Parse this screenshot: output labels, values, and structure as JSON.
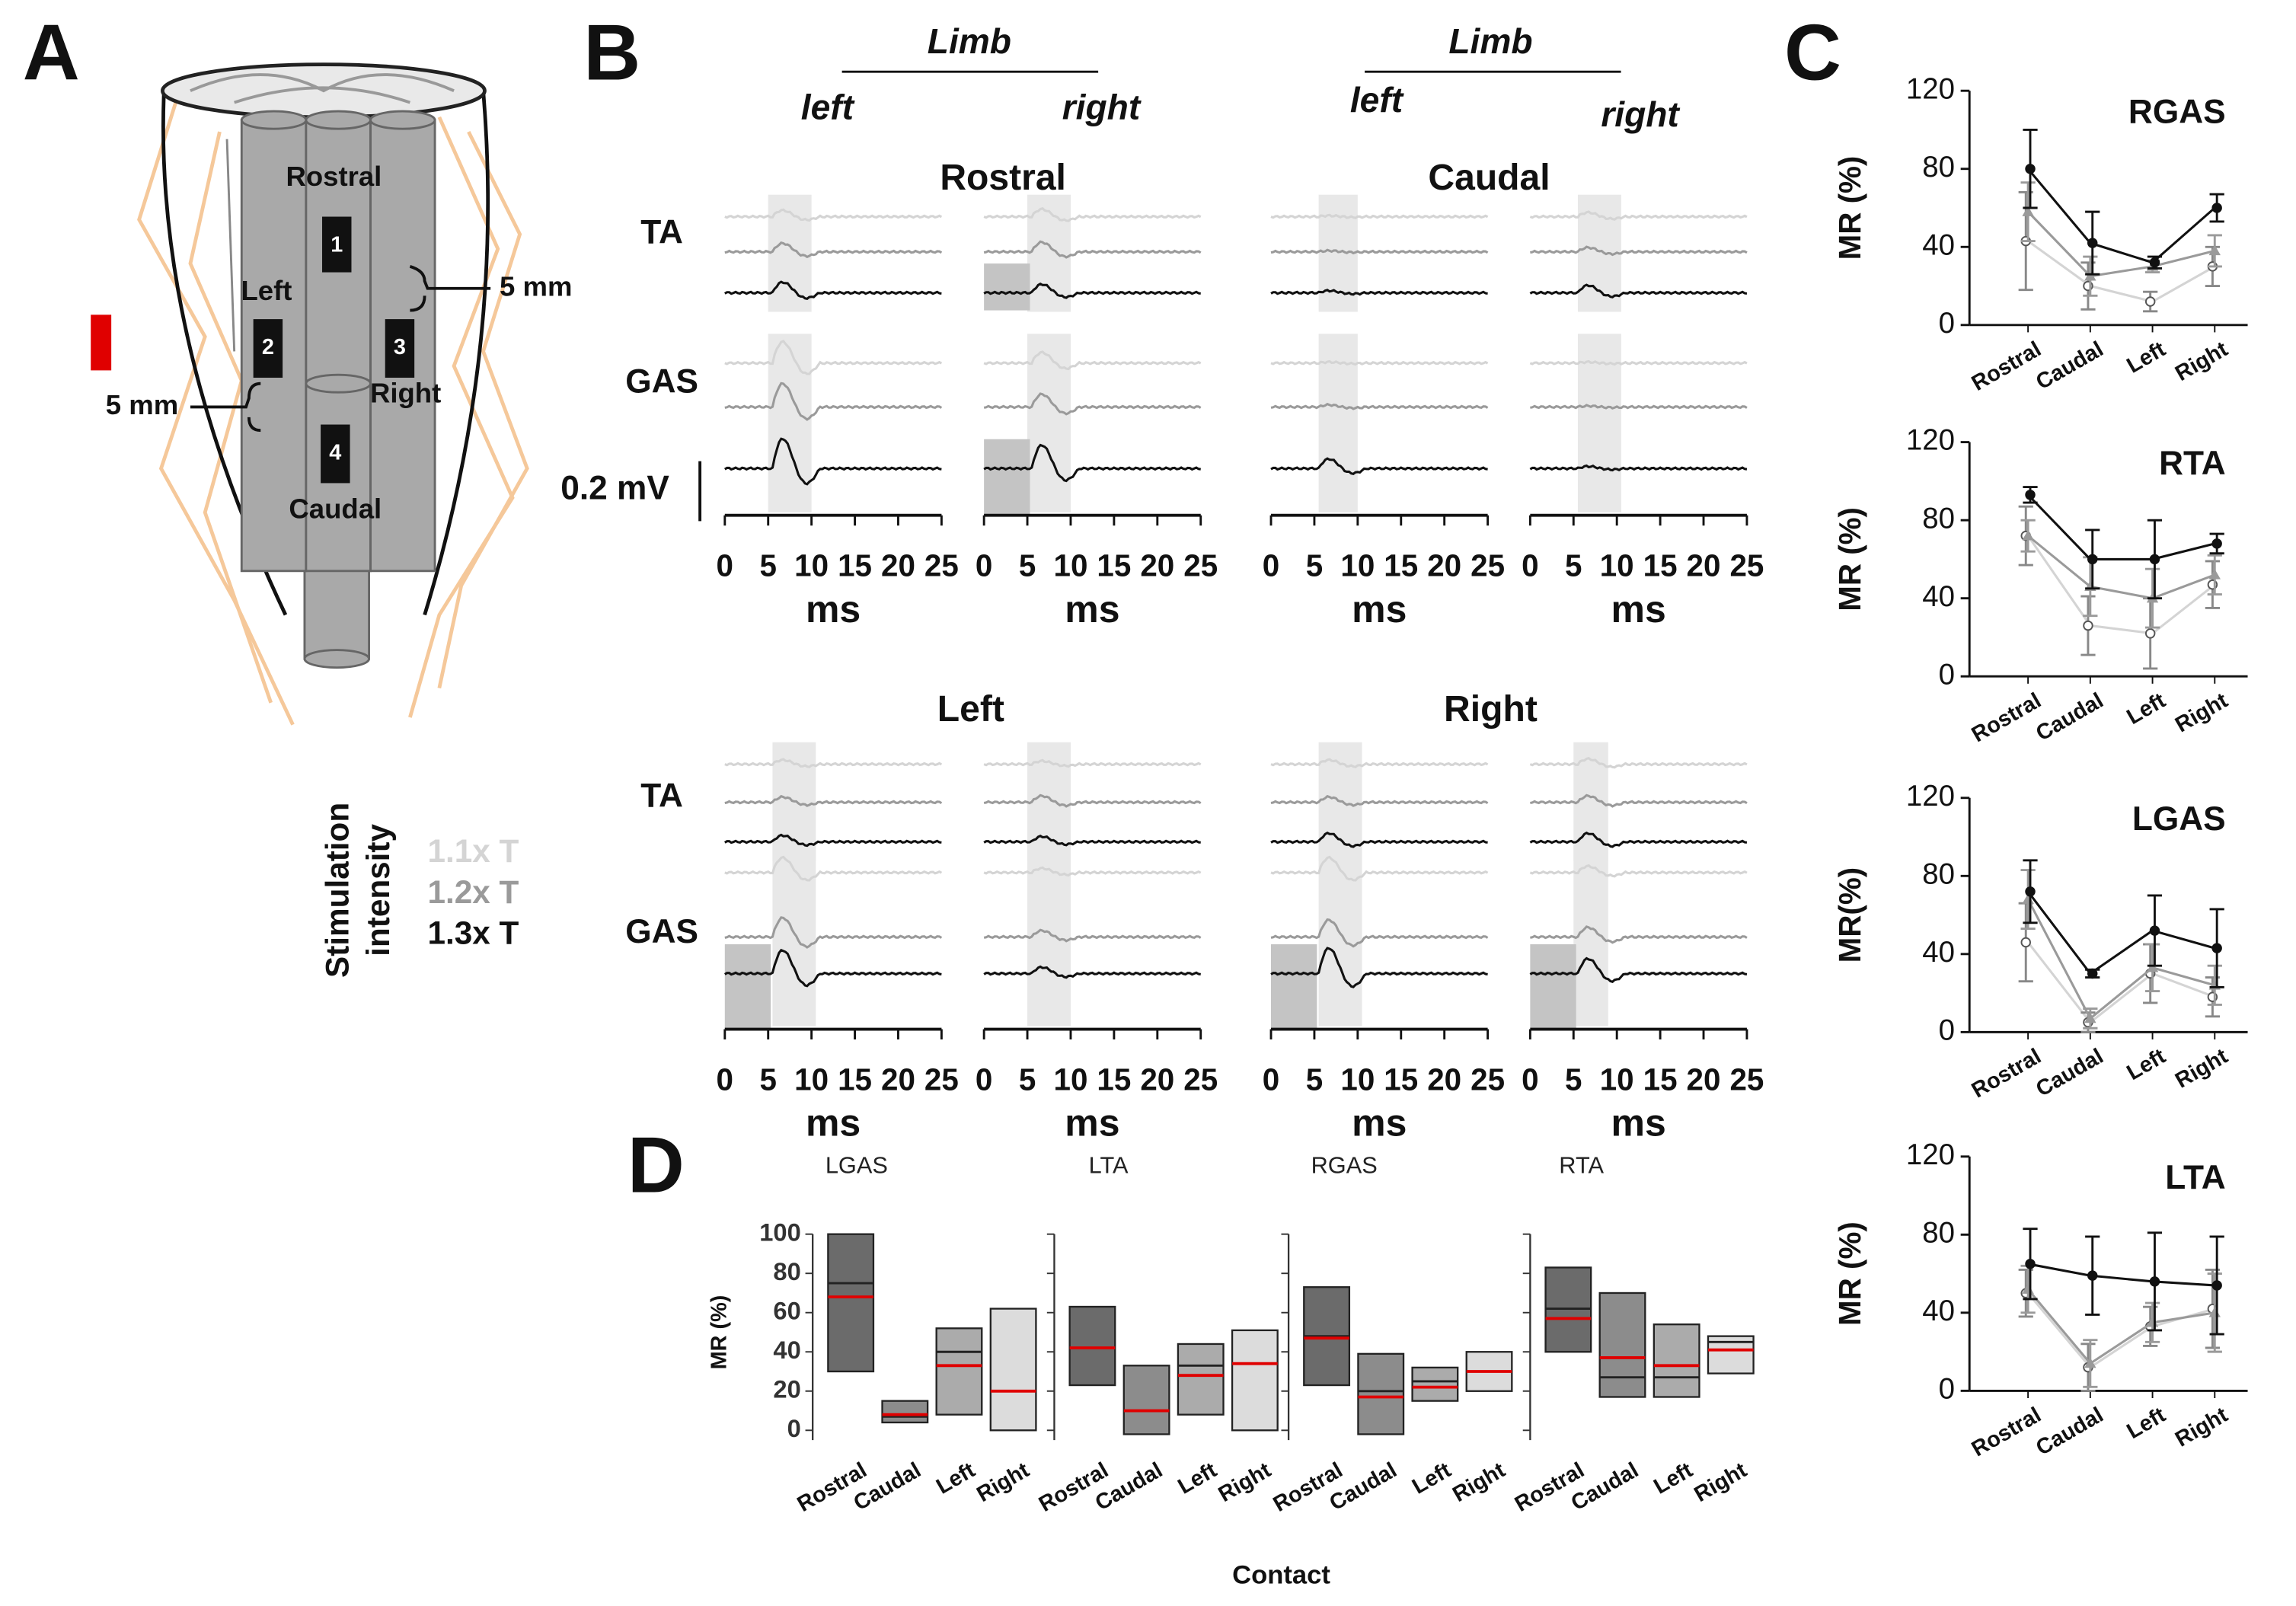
{
  "panel_labels": [
    "A",
    "B",
    "C",
    "D"
  ],
  "diagram": {
    "regions": [
      "Rostral",
      "Left",
      "Right",
      "Caudal"
    ],
    "contacts": [
      "1",
      "2",
      "3",
      "4"
    ],
    "distances": [
      "5 mm",
      "5 mm"
    ],
    "legend_title": [
      "Stimulation",
      "intensity"
    ]
  },
  "legend": [
    {
      "name": "1.1x T",
      "color": "#d4d4d4"
    },
    {
      "name": "1.2x T",
      "color": "#9a9a9a"
    },
    {
      "name": "1.3x T",
      "color": "#111111"
    }
  ],
  "traces": {
    "limb": [
      "Limb",
      "Limb"
    ],
    "sides": [
      "left",
      "right",
      "left",
      "right"
    ],
    "sites": [
      "Rostral",
      "Caudal",
      "Left",
      "Right"
    ],
    "muscles": [
      "TA",
      "GAS",
      "TA",
      "GAS"
    ],
    "scale_bar": "0.2 mV",
    "xticks": [
      0,
      5,
      10,
      15,
      20,
      25
    ],
    "xlim": [
      0,
      25
    ],
    "xlabel": "ms"
  },
  "contact_label": "Contact",
  "chart_data": [
    {
      "type": "line",
      "title": "RGAS",
      "ylabel": "MR (%)",
      "categories": [
        "Rostral",
        "Caudal",
        "Left",
        "Right"
      ],
      "ylim": [
        0,
        120
      ],
      "yticks": [
        0,
        40,
        80,
        120
      ],
      "series": [
        {
          "values": [
            43,
            20,
            12,
            30
          ],
          "errors": [
            25,
            12,
            5,
            10
          ]
        },
        {
          "values": [
            58,
            25,
            30,
            38
          ],
          "errors": [
            15,
            10,
            3,
            8
          ]
        },
        {
          "values": [
            80,
            42,
            32,
            60
          ],
          "errors": [
            20,
            16,
            3,
            7
          ]
        }
      ]
    },
    {
      "type": "line",
      "title": "RTA",
      "ylabel": "MR (%)",
      "categories": [
        "Rostral",
        "Caudal",
        "Left",
        "Right"
      ],
      "ylim": [
        0,
        120
      ],
      "yticks": [
        0,
        40,
        80,
        120
      ],
      "series": [
        {
          "values": [
            72,
            26,
            22,
            47
          ],
          "errors": [
            15,
            15,
            18,
            12
          ]
        },
        {
          "values": [
            72,
            46,
            40,
            52
          ],
          "errors": [
            8,
            15,
            15,
            10
          ]
        },
        {
          "values": [
            93,
            60,
            60,
            68
          ],
          "errors": [
            4,
            15,
            20,
            5
          ]
        }
      ]
    },
    {
      "type": "line",
      "title": "LGAS",
      "ylabel": "MR(%)",
      "categories": [
        "Rostral",
        "Caudal",
        "Left",
        "Right"
      ],
      "ylim": [
        0,
        120
      ],
      "yticks": [
        0,
        40,
        80,
        120
      ],
      "series": [
        {
          "values": [
            46,
            5,
            30,
            18
          ],
          "errors": [
            20,
            5,
            15,
            10
          ]
        },
        {
          "values": [
            68,
            7,
            33,
            24
          ],
          "errors": [
            15,
            5,
            12,
            10
          ]
        },
        {
          "values": [
            72,
            30,
            52,
            43
          ],
          "errors": [
            16,
            2,
            18,
            20
          ]
        }
      ]
    },
    {
      "type": "line",
      "title": "LTA",
      "ylabel": "MR (%)",
      "categories": [
        "Rostral",
        "Caudal",
        "Left",
        "Right"
      ],
      "ylim": [
        0,
        120
      ],
      "yticks": [
        0,
        40,
        80,
        120
      ],
      "series": [
        {
          "values": [
            50,
            12,
            33,
            42
          ],
          "errors": [
            12,
            12,
            10,
            20
          ]
        },
        {
          "values": [
            52,
            14,
            35,
            40
          ],
          "errors": [
            12,
            12,
            10,
            20
          ]
        },
        {
          "values": [
            65,
            59,
            56,
            54
          ],
          "errors": [
            18,
            20,
            25,
            25
          ]
        }
      ]
    },
    {
      "type": "range",
      "title": "LGAS",
      "ylabel": "MR (%)",
      "tick_labels": true,
      "categories": [
        "Rostral",
        "Caudal",
        "Left",
        "Right"
      ],
      "colors": [
        "#6b6b6b",
        "#8c8c8c",
        "#ababab",
        "#dcdcdc"
      ],
      "mean_color": "#e00000",
      "ylim": [
        -5,
        100
      ],
      "yticks": [
        0,
        20,
        40,
        60,
        80,
        100
      ],
      "low": [
        30,
        4,
        8,
        0
      ],
      "high": [
        100,
        15,
        52,
        62
      ],
      "median": [
        75,
        7,
        40,
        20
      ],
      "mean": [
        68,
        8,
        33,
        20
      ]
    },
    {
      "type": "range",
      "title": "LTA",
      "tick_labels": false,
      "categories": [
        "Rostral",
        "Caudal",
        "Left",
        "Right"
      ],
      "colors": [
        "#6b6b6b",
        "#8c8c8c",
        "#ababab",
        "#dcdcdc"
      ],
      "mean_color": "#e00000",
      "ylim": [
        -5,
        100
      ],
      "yticks": [
        0,
        20,
        40,
        60,
        80,
        100
      ],
      "low": [
        23,
        -2,
        8,
        0
      ],
      "high": [
        63,
        33,
        44,
        51
      ],
      "median": [
        42,
        10,
        33,
        34
      ],
      "mean": [
        42,
        10,
        28,
        34
      ]
    },
    {
      "type": "range",
      "title": "RGAS",
      "tick_labels": false,
      "categories": [
        "Rostral",
        "Caudal",
        "Left",
        "Right"
      ],
      "colors": [
        "#6b6b6b",
        "#8c8c8c",
        "#ababab",
        "#dcdcdc"
      ],
      "mean_color": "#e00000",
      "ylim": [
        -5,
        100
      ],
      "yticks": [
        0,
        20,
        40,
        60,
        80,
        100
      ],
      "low": [
        23,
        -2,
        15,
        20
      ],
      "high": [
        73,
        39,
        32,
        40
      ],
      "median": [
        48,
        20,
        25,
        30
      ],
      "mean": [
        47,
        17,
        22,
        30
      ]
    },
    {
      "type": "range",
      "title": "RTA",
      "tick_labels": false,
      "categories": [
        "Rostral",
        "Caudal",
        "Left",
        "Right"
      ],
      "colors": [
        "#6b6b6b",
        "#8c8c8c",
        "#ababab",
        "#dcdcdc"
      ],
      "mean_color": "#e00000",
      "ylim": [
        -5,
        100
      ],
      "yticks": [
        0,
        20,
        40,
        60,
        80,
        100
      ],
      "low": [
        40,
        17,
        17,
        29
      ],
      "high": [
        83,
        70,
        54,
        48
      ],
      "median": [
        62,
        27,
        27,
        45
      ],
      "mean": [
        57,
        37,
        33,
        41
      ]
    }
  ]
}
